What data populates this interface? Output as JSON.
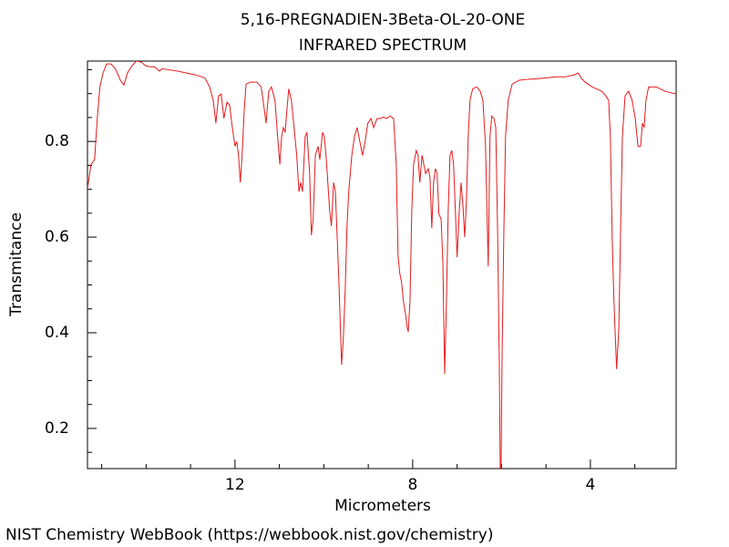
{
  "chart_data": {
    "type": "line",
    "title": "5,16-PREGNADIEN-3Beta-OL-20-ONE",
    "subtitle": "INFRARED SPECTRUM",
    "x_label": "Micrometers",
    "y_label": "Transmitance",
    "xlim": [
      15.32,
      2.07
    ],
    "ylim": [
      0.116,
      0.968
    ],
    "xticks": [
      12,
      8,
      4
    ],
    "yticks": [
      0.2,
      0.4,
      0.6,
      0.8
    ],
    "xminorticks": [
      15,
      14,
      13,
      11,
      10,
      9,
      7,
      6,
      5,
      3
    ],
    "yminorticks": [
      0.15,
      0.25,
      0.3,
      0.35,
      0.45,
      0.5,
      0.55,
      0.65,
      0.7,
      0.75,
      0.85,
      0.9,
      0.95
    ],
    "grid": false,
    "x": [
      15.32,
      15.24,
      15.16,
      15.1,
      15.04,
      14.97,
      14.89,
      14.79,
      14.69,
      14.58,
      14.5,
      14.42,
      14.32,
      14.22,
      14.11,
      14.01,
      13.91,
      13.81,
      13.7,
      13.64,
      13.5,
      13.29,
      13.09,
      12.88,
      12.68,
      12.57,
      12.49,
      12.43,
      12.37,
      12.31,
      12.25,
      12.18,
      12.12,
      12.06,
      12.0,
      11.96,
      11.92,
      11.88,
      11.84,
      11.79,
      11.75,
      11.65,
      11.51,
      11.41,
      11.34,
      11.3,
      11.24,
      11.18,
      11.1,
      11.04,
      10.99,
      10.95,
      10.91,
      10.87,
      10.83,
      10.79,
      10.73,
      10.67,
      10.61,
      10.56,
      10.52,
      10.48,
      10.42,
      10.38,
      10.32,
      10.28,
      10.24,
      10.19,
      10.13,
      10.09,
      10.03,
      9.99,
      9.95,
      9.91,
      9.87,
      9.83,
      9.78,
      9.74,
      9.7,
      9.66,
      9.62,
      9.6,
      9.56,
      9.52,
      9.48,
      9.44,
      9.37,
      9.31,
      9.25,
      9.19,
      9.13,
      9.07,
      9.01,
      8.94,
      8.88,
      8.8,
      8.72,
      8.66,
      8.59,
      8.51,
      8.43,
      8.37,
      8.33,
      8.29,
      8.25,
      8.21,
      8.16,
      8.12,
      8.1,
      8.06,
      8.02,
      7.98,
      7.92,
      7.88,
      7.84,
      7.79,
      7.75,
      7.71,
      7.65,
      7.61,
      7.57,
      7.53,
      7.49,
      7.45,
      7.41,
      7.36,
      7.32,
      7.28,
      7.24,
      7.2,
      7.16,
      7.12,
      7.08,
      7.04,
      7.0,
      6.95,
      6.91,
      6.87,
      6.83,
      6.79,
      6.75,
      6.71,
      6.65,
      6.56,
      6.48,
      6.42,
      6.36,
      6.3,
      6.26,
      6.22,
      6.17,
      6.13,
      6.09,
      6.05,
      6.03,
      6.01,
      5.99,
      5.95,
      5.91,
      5.85,
      5.76,
      5.6,
      5.4,
      5.19,
      4.98,
      4.78,
      4.57,
      4.37,
      4.27,
      4.21,
      4.12,
      3.96,
      3.75,
      3.65,
      3.59,
      3.55,
      3.51,
      3.47,
      3.43,
      3.41,
      3.36,
      3.32,
      3.28,
      3.22,
      3.14,
      3.06,
      2.99,
      2.93,
      2.87,
      2.83,
      2.79,
      2.75,
      2.69,
      2.52,
      2.32,
      2.07
    ],
    "series": [
      {
        "color": "#e41a1c",
        "values": [
          0.701,
          0.752,
          0.762,
          0.848,
          0.914,
          0.943,
          0.962,
          0.962,
          0.952,
          0.928,
          0.918,
          0.943,
          0.958,
          0.968,
          0.966,
          0.958,
          0.956,
          0.956,
          0.947,
          0.952,
          0.95,
          0.947,
          0.943,
          0.939,
          0.933,
          0.914,
          0.886,
          0.838,
          0.895,
          0.899,
          0.848,
          0.882,
          0.876,
          0.829,
          0.79,
          0.8,
          0.771,
          0.714,
          0.771,
          0.867,
          0.92,
          0.924,
          0.924,
          0.914,
          0.867,
          0.838,
          0.905,
          0.914,
          0.886,
          0.81,
          0.752,
          0.81,
          0.829,
          0.819,
          0.867,
          0.91,
          0.886,
          0.829,
          0.771,
          0.695,
          0.714,
          0.695,
          0.81,
          0.819,
          0.733,
          0.604,
          0.638,
          0.771,
          0.79,
          0.762,
          0.819,
          0.81,
          0.771,
          0.714,
          0.657,
          0.623,
          0.714,
          0.695,
          0.6,
          0.505,
          0.39,
          0.333,
          0.39,
          0.486,
          0.619,
          0.695,
          0.771,
          0.81,
          0.829,
          0.8,
          0.771,
          0.8,
          0.838,
          0.848,
          0.829,
          0.848,
          0.848,
          0.851,
          0.848,
          0.853,
          0.848,
          0.752,
          0.562,
          0.524,
          0.505,
          0.467,
          0.438,
          0.41,
          0.402,
          0.467,
          0.657,
          0.752,
          0.781,
          0.771,
          0.714,
          0.771,
          0.752,
          0.733,
          0.743,
          0.724,
          0.619,
          0.714,
          0.743,
          0.733,
          0.648,
          0.638,
          0.543,
          0.314,
          0.467,
          0.657,
          0.771,
          0.781,
          0.752,
          0.657,
          0.558,
          0.657,
          0.714,
          0.667,
          0.6,
          0.676,
          0.81,
          0.886,
          0.91,
          0.914,
          0.905,
          0.886,
          0.79,
          0.539,
          0.81,
          0.853,
          0.848,
          0.829,
          0.619,
          0.333,
          0.116,
          0.116,
          0.333,
          0.6,
          0.81,
          0.886,
          0.92,
          0.928,
          0.93,
          0.931,
          0.933,
          0.935,
          0.935,
          0.939,
          0.943,
          0.933,
          0.924,
          0.914,
          0.905,
          0.895,
          0.886,
          0.81,
          0.6,
          0.467,
          0.371,
          0.324,
          0.41,
          0.619,
          0.81,
          0.895,
          0.905,
          0.886,
          0.848,
          0.79,
          0.79,
          0.838,
          0.829,
          0.886,
          0.914,
          0.914,
          0.905,
          0.899
        ]
      }
    ]
  },
  "footer": "NIST Chemistry WebBook (https://webbook.nist.gov/chemistry)"
}
